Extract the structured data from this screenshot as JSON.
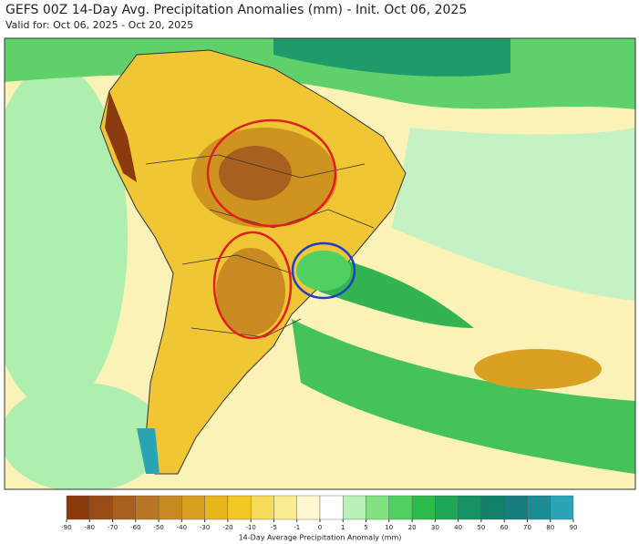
{
  "header": {
    "title": "GEFS 00Z 14-Day Avg. Precipitation Anomalies (mm) - Init. Oct 06, 2025",
    "subtitle": "Valid for: Oct 06, 2025 - Oct 20, 2025"
  },
  "colorbar": {
    "label": "14-Day Average Precipitation Anomaly (mm)",
    "ticks": [
      -90,
      -80,
      -70,
      -60,
      -50,
      -40,
      -30,
      -20,
      -10,
      -5,
      -1,
      0,
      1,
      5,
      10,
      20,
      30,
      40,
      50,
      60,
      70,
      80,
      90
    ],
    "colors": [
      "#8b3a0e",
      "#9a4c16",
      "#a8601e",
      "#b97526",
      "#c98a22",
      "#d99e1e",
      "#e8b51b",
      "#f2c923",
      "#f6dc58",
      "#f9ec92",
      "#fdf8d2",
      "#ffffff",
      "#b9f1b9",
      "#80e380",
      "#4fd060",
      "#2dbb4c",
      "#1fa758",
      "#179262",
      "#13806b",
      "#167c7e",
      "#1c8d97",
      "#2ba4b6"
    ]
  }
}
